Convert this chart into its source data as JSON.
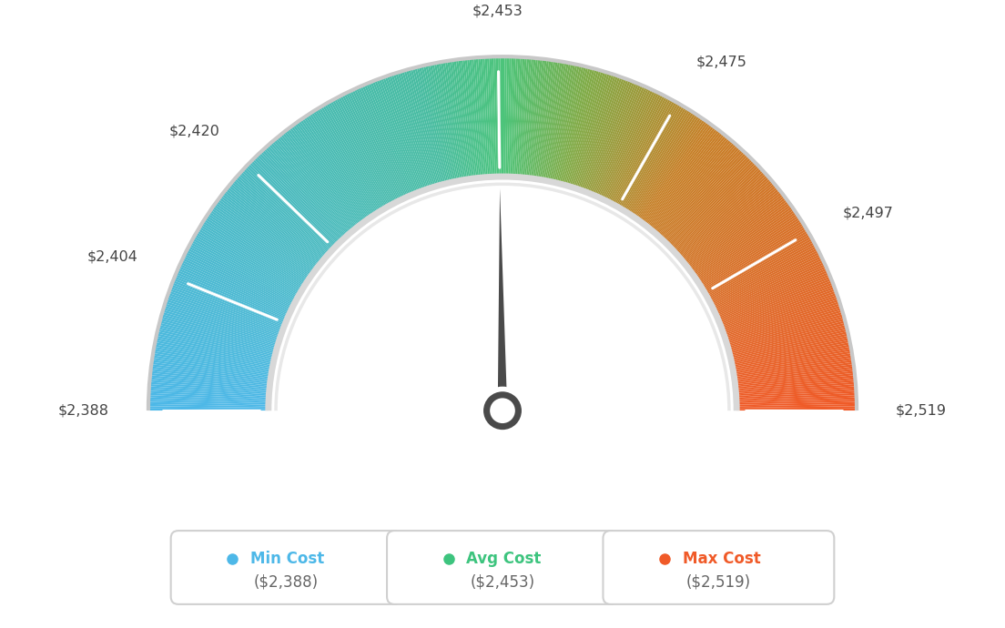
{
  "min_val": 2388,
  "avg_val": 2453,
  "max_val": 2519,
  "tick_labels": [
    "$2,388",
    "$2,404",
    "$2,420",
    "$2,453",
    "$2,475",
    "$2,497",
    "$2,519"
  ],
  "tick_values": [
    2388,
    2404,
    2420,
    2453,
    2475,
    2497,
    2519
  ],
  "legend": [
    {
      "label": "Min Cost",
      "value": "($2,388)",
      "color": "#4db8e8"
    },
    {
      "label": "Avg Cost",
      "value": "($2,453)",
      "color": "#3dc47e"
    },
    {
      "label": "Max Cost",
      "value": "($2,519)",
      "color": "#f05a28"
    }
  ],
  "background_color": "#ffffff",
  "needle_value": 2453,
  "color_stops": [
    [
      0.0,
      [
        0.302,
        0.722,
        0.91
      ]
    ],
    [
      0.42,
      [
        0.282,
        0.737,
        0.631
      ]
    ],
    [
      0.5,
      [
        0.298,
        0.769,
        0.478
      ]
    ],
    [
      0.58,
      [
        0.502,
        0.671,
        0.278
      ]
    ],
    [
      0.7,
      [
        0.78,
        0.502,
        0.157
      ]
    ],
    [
      1.0,
      [
        0.941,
        0.353,
        0.157
      ]
    ]
  ]
}
